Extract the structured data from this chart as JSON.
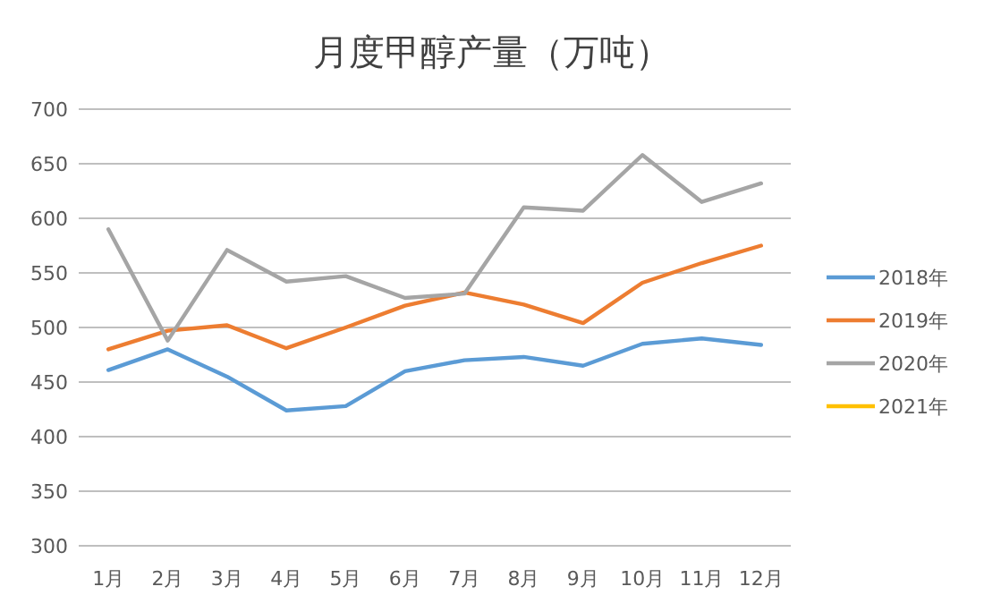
{
  "chart_data": {
    "type": "line",
    "title": "月度甲醇产量（万吨）",
    "categories": [
      "1月",
      "2月",
      "3月",
      "4月",
      "5月",
      "6月",
      "7月",
      "8月",
      "9月",
      "10月",
      "11月",
      "12月"
    ],
    "series": [
      {
        "name": "2018年",
        "color": "#5b9bd5",
        "values": [
          461,
          480,
          455,
          424,
          428,
          460,
          470,
          473,
          465,
          485,
          490,
          484
        ]
      },
      {
        "name": "2019年",
        "color": "#ed7d31",
        "values": [
          480,
          497,
          502,
          481,
          500,
          520,
          532,
          521,
          504,
          541,
          559,
          575
        ]
      },
      {
        "name": "2020年",
        "color": "#a5a5a5",
        "values": [
          590,
          488,
          571,
          542,
          547,
          527,
          531,
          610,
          607,
          658,
          615,
          632
        ]
      },
      {
        "name": "2021年",
        "color": "#ffc000",
        "values": [
          null,
          null,
          null,
          null,
          null,
          null,
          null,
          null,
          null,
          null,
          null,
          null
        ]
      }
    ],
    "ylim": [
      300,
      700
    ],
    "yticks": [
      300,
      350,
      400,
      450,
      500,
      550,
      600,
      650,
      700
    ],
    "grid": "y",
    "legend": "right",
    "marker": "none",
    "line_style": "solid"
  }
}
